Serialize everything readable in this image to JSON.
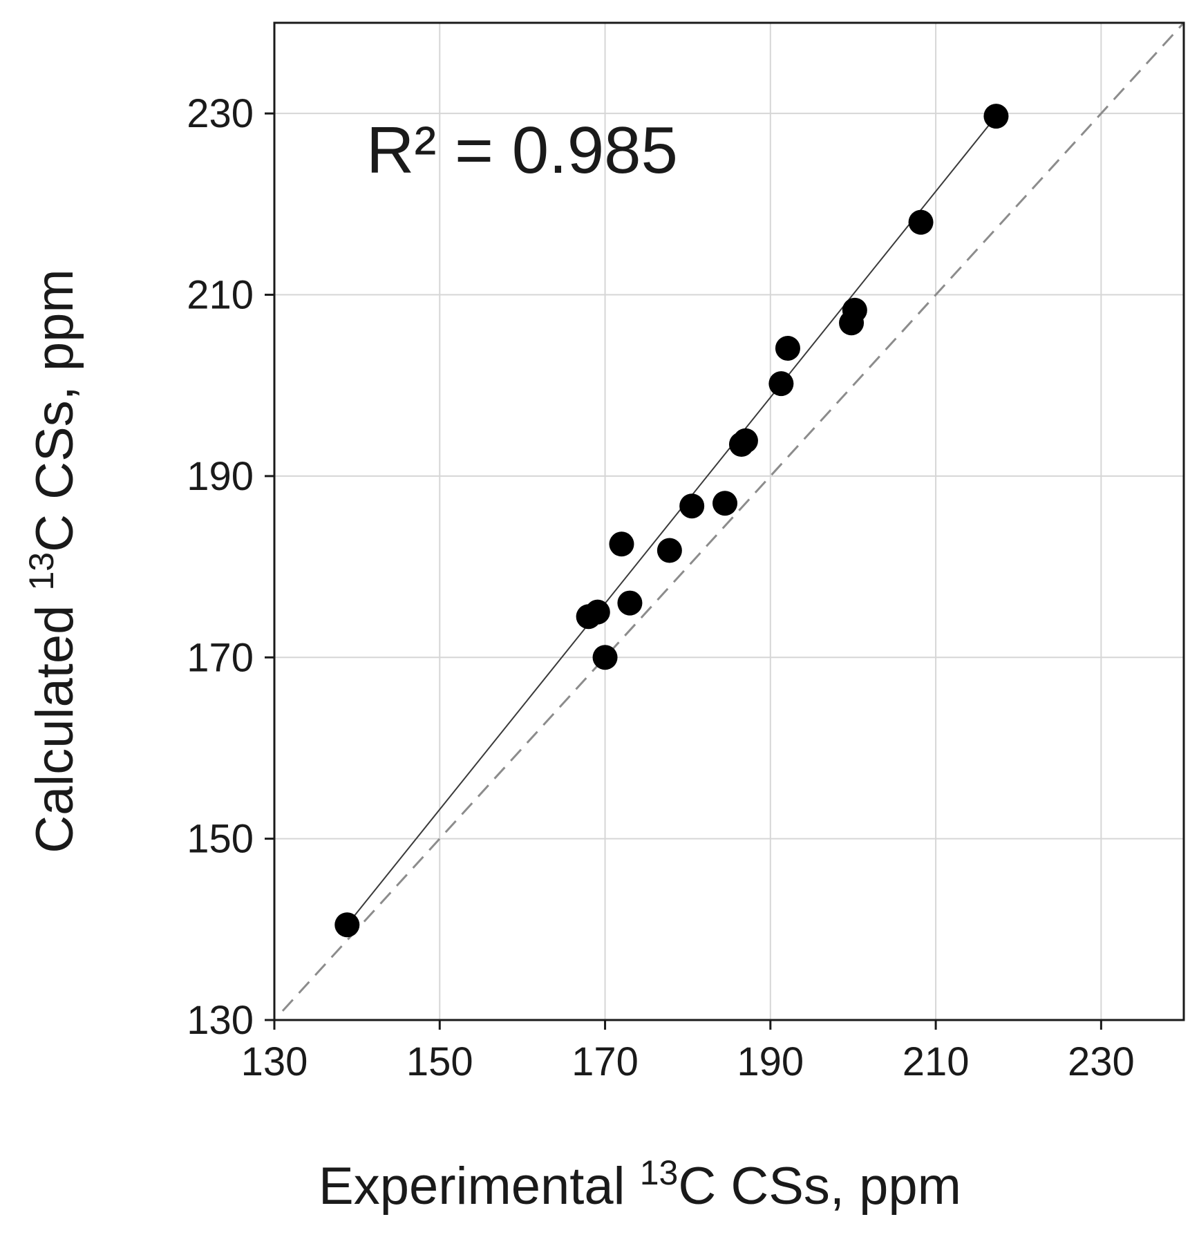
{
  "chart_data": {
    "type": "scatter",
    "title": "",
    "xlabel": {
      "prefix": "Experimental ",
      "sup": "13",
      "suffix": "C CSs, ppm"
    },
    "ylabel": {
      "prefix": "Calculated ",
      "sup": "13",
      "suffix": "C CSs, ppm"
    },
    "xlim": [
      130,
      240
    ],
    "ylim": [
      130,
      240
    ],
    "xticks": [
      130,
      150,
      170,
      190,
      210,
      230
    ],
    "yticks": [
      130,
      150,
      170,
      190,
      210,
      230
    ],
    "grid": true,
    "annotation": "R² = 0.985",
    "series": [
      {
        "name": "data",
        "x": [
          138.8,
          168.0,
          169.1,
          170.0,
          172.0,
          173.0,
          177.8,
          180.5,
          184.5,
          186.5,
          187.0,
          191.3,
          192.1,
          199.8,
          200.2,
          208.2,
          217.3
        ],
        "y": [
          140.5,
          174.5,
          175.0,
          170.0,
          182.5,
          176.0,
          181.8,
          186.7,
          187.0,
          193.5,
          193.9,
          200.2,
          204.1,
          206.9,
          208.3,
          218.0,
          229.7
        ]
      }
    ],
    "fit_line": {
      "x": [
        138.8,
        217.3
      ],
      "y": [
        140.5,
        229.7
      ],
      "style": "solid"
    },
    "identity_line": {
      "x": [
        131,
        240
      ],
      "y": [
        131,
        240
      ],
      "style": "dashed"
    },
    "colors": {
      "points": "#000000",
      "grid": "#d6d6d6",
      "identity": "#8c8c8c",
      "fit": "#3a3a3a"
    }
  }
}
